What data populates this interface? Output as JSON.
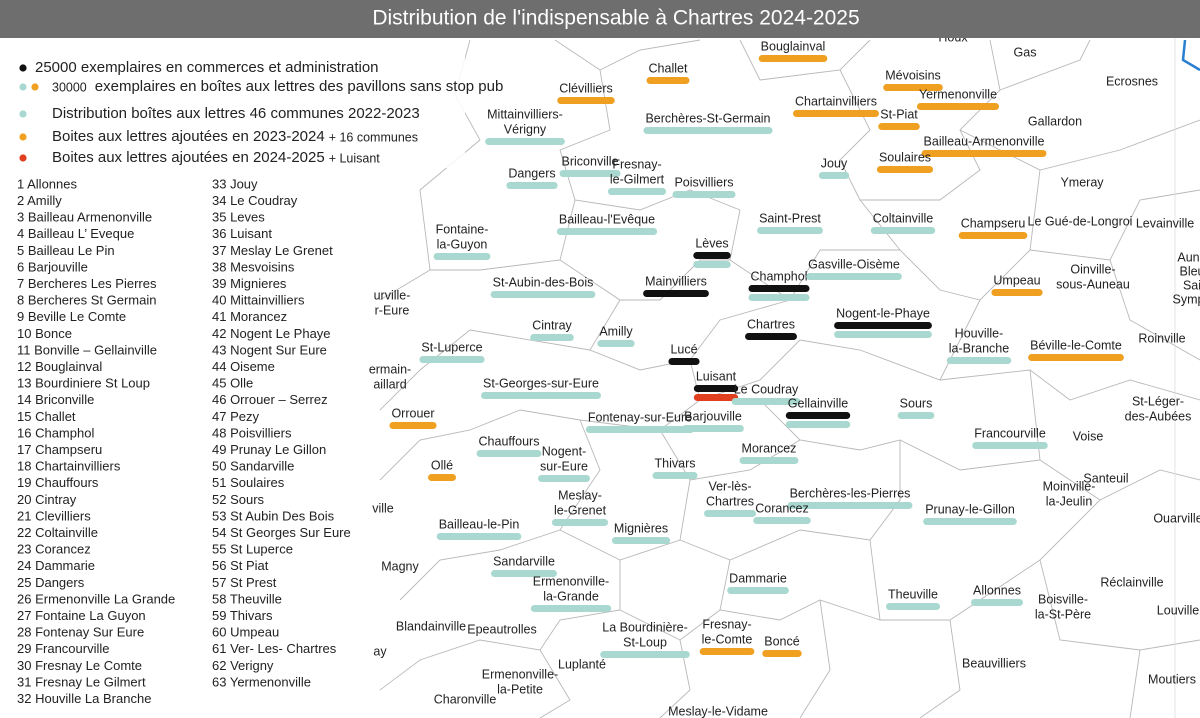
{
  "title": "Distribution de l'indispensable à Chartres 2024-2025",
  "legend": [
    {
      "dots": [
        "#111111"
      ],
      "text": "25000 exemplaires en commerces et administration"
    },
    {
      "dots": [
        "#a8d8cf",
        "#f0a020"
      ],
      "small": "30000",
      "text": "exemplaires en boîtes aux lettres des pavillons sans stop pub"
    },
    {
      "dots": [
        "#a8d8cf"
      ],
      "text": "Distribution boîtes aux lettres 46 communes 2022-2023"
    },
    {
      "dots": [
        "#f0a020"
      ],
      "text": "Boites aux lettres ajoutées en 2023-2024",
      "small": "+ 16 communes"
    },
    {
      "dots": [
        "#e04020"
      ],
      "text": "Boites aux lettres ajoutées en 2024-2025",
      "small": "+ Luisant"
    }
  ],
  "marker_colors": {
    "black": "#111111",
    "teal": "#a8d8cf",
    "orange": "#f0a020",
    "red": "#e04020"
  },
  "list": [
    "1  Allonnes",
    "2  Amilly",
    "3  Bailleau Armenonville",
    "4  Bailleau L’ Eveque",
    "5  Bailleau Le Pin",
    "6  Barjouville",
    "7  Bercheres Les Pierres",
    "8  Bercheres St Germain",
    "9  Beville Le Comte",
    "10  Bonce",
    "11  Bonville – Gellainville",
    "12  Bouglainval",
    "13  Bourdiniere St Loup",
    "14  Briconville",
    "15  Challet",
    "16  Champhol",
    "17  Champseru",
    "18  Chartainvilliers",
    "19  Chauffours",
    "20  Cintray",
    "21  Clevilliers",
    "22  Coltainville",
    "23  Corancez",
    "24  Dammarie",
    "25  Dangers",
    "26  Ermenonville La Grande",
    "27  Fontaine La Guyon",
    "28  Fontenay Sur Eure",
    "29  Francourville",
    "30  Fresnay Le Comte",
    "31  Fresnay Le Gilmert",
    "32  Houville La Branche",
    "33  Jouy",
    "34  Le Coudray",
    "35  Leves",
    "36  Luisant",
    "37  Meslay Le Grenet",
    "38  Mesvoisins",
    "39  Mignieres",
    "40  Mittainvilliers",
    "41  Morancez",
    "42  Nogent Le Phaye",
    "43  Nogent Sur Eure",
    "44  Oiseme",
    "45  Olle",
    "46  Orrouer – Serrez",
    "47  Pezy",
    "48  Poisvilliers",
    "49  Prunay Le Gillon",
    "50  Sandarville",
    "51  Soulaires",
    "52  Sours",
    "53  St Aubin Des Bois",
    "54  St Georges Sur Eure",
    "55  St Luperce",
    "56  St Piat",
    "57  St Prest",
    "58  Theuville",
    "59  Thivars",
    "60  Umpeau",
    "61  Ver- Les- Chartres",
    "62  Verigny",
    "63  Yermenonville"
  ],
  "map_labels": [
    {
      "lines": [
        "Houx"
      ],
      "marks": []
    },
    {
      "lines": [
        "Gas"
      ],
      "marks": []
    },
    {
      "lines": [
        "Ecrosnes"
      ],
      "marks": []
    },
    {
      "lines": [
        "Bouglainval"
      ],
      "marks": [
        "orange"
      ]
    },
    {
      "lines": [
        "Challet"
      ],
      "marks": [
        "orange"
      ]
    },
    {
      "lines": [
        "Mévoisins"
      ],
      "marks": [
        "orange"
      ]
    },
    {
      "lines": [
        "Clévilliers"
      ],
      "marks": [
        "orange"
      ]
    },
    {
      "lines": [
        "Yermenonville"
      ],
      "marks": [
        "orange"
      ]
    },
    {
      "lines": [
        "Chartainvilliers"
      ],
      "marks": [
        "orange"
      ]
    },
    {
      "lines": [
        "Mittainvilliers-",
        "Vérigny"
      ],
      "marks": [
        "teal"
      ]
    },
    {
      "lines": [
        "Gallardon"
      ],
      "marks": []
    },
    {
      "lines": [
        "St-Piat"
      ],
      "marks": [
        "orange"
      ]
    },
    {
      "lines": [
        "Berchères-St-Germain"
      ],
      "marks": [
        "teal"
      ]
    },
    {
      "lines": [
        "Bailleau-Armenonville"
      ],
      "marks": [
        "orange"
      ]
    },
    {
      "lines": [
        "Briconville"
      ],
      "marks": [
        "teal"
      ]
    },
    {
      "lines": [
        "Fresnay-",
        "le-Gilmert"
      ],
      "marks": [
        "teal"
      ]
    },
    {
      "lines": [
        "Jouy"
      ],
      "marks": [
        "teal"
      ]
    },
    {
      "lines": [
        "Soulaires"
      ],
      "marks": [
        "orange"
      ]
    },
    {
      "lines": [
        "Dangers"
      ],
      "marks": [
        "teal"
      ]
    },
    {
      "lines": [
        "Poisvilliers"
      ],
      "marks": [
        "teal"
      ]
    },
    {
      "lines": [
        "Ymeray"
      ],
      "marks": []
    },
    {
      "lines": [
        "Fontaine-",
        "la-Guyon"
      ],
      "marks": [
        "teal"
      ]
    },
    {
      "lines": [
        "Bailleau-l'Evêque"
      ],
      "marks": [
        "teal"
      ]
    },
    {
      "lines": [
        "Saint-Prest"
      ],
      "marks": [
        "teal"
      ]
    },
    {
      "lines": [
        "Coltainville"
      ],
      "marks": [
        "teal"
      ]
    },
    {
      "lines": [
        "Champseru"
      ],
      "marks": [
        "orange"
      ]
    },
    {
      "lines": [
        "Le Gué-de-Longroi"
      ],
      "marks": []
    },
    {
      "lines": [
        "Levainville"
      ],
      "marks": []
    },
    {
      "lines": [
        "Lèves"
      ],
      "marks": [
        "black",
        "teal"
      ]
    },
    {
      "lines": [
        "Champhol"
      ],
      "marks": [
        "black",
        "teal"
      ]
    },
    {
      "lines": [
        "Gasville-Oisème"
      ],
      "marks": [
        "teal"
      ]
    },
    {
      "lines": [
        "Aune",
        "Bleu",
        "Sai",
        "Symph"
      ],
      "marks": []
    },
    {
      "lines": [
        "Umpeau"
      ],
      "marks": [
        "orange"
      ]
    },
    {
      "lines": [
        "Oinville-",
        "sous-Auneau"
      ],
      "marks": []
    },
    {
      "lines": [
        "St-Aubin-des-Bois"
      ],
      "marks": [
        "teal"
      ]
    },
    {
      "lines": [
        "Mainvilliers"
      ],
      "marks": [
        "black"
      ]
    },
    {
      "lines": [
        "urville-",
        "r-Eure"
      ],
      "marks": []
    },
    {
      "lines": [
        "Nogent-le-Phaye"
      ],
      "marks": [
        "black",
        "teal"
      ]
    },
    {
      "lines": [
        "Cintray"
      ],
      "marks": [
        "teal"
      ]
    },
    {
      "lines": [
        "Amilly"
      ],
      "marks": [
        "teal"
      ]
    },
    {
      "lines": [
        "Chartres"
      ],
      "marks": [
        "black"
      ]
    },
    {
      "lines": [
        "Houville-",
        "la-Branche"
      ],
      "marks": [
        "teal"
      ]
    },
    {
      "lines": [
        "Béville-le-Comte"
      ],
      "marks": [
        "orange"
      ]
    },
    {
      "lines": [
        "Roinville"
      ],
      "marks": []
    },
    {
      "lines": [
        "St-Luperce"
      ],
      "marks": [
        "teal"
      ]
    },
    {
      "lines": [
        "ermain-",
        "aillard"
      ],
      "marks": []
    },
    {
      "lines": [
        "Lucé"
      ],
      "marks": [
        "black"
      ]
    },
    {
      "lines": [
        "Luisant"
      ],
      "marks": [
        "black",
        "red"
      ]
    },
    {
      "lines": [
        "Le Coudray"
      ],
      "marks": [
        "teal"
      ]
    },
    {
      "lines": [
        "St-Georges-sur-Eure"
      ],
      "marks": [
        "teal"
      ]
    },
    {
      "lines": [
        "Gellainville"
      ],
      "marks": [
        "black",
        "teal"
      ]
    },
    {
      "lines": [
        "Sours"
      ],
      "marks": [
        "teal"
      ]
    },
    {
      "lines": [
        "Orrouer"
      ],
      "marks": [
        "orange"
      ]
    },
    {
      "lines": [
        "St-Léger-",
        "des-Aubées"
      ],
      "marks": []
    },
    {
      "lines": [
        "Fontenay-sur-Eure"
      ],
      "marks": [
        "teal"
      ]
    },
    {
      "lines": [
        "Barjouville"
      ],
      "marks": [
        "teal"
      ]
    },
    {
      "lines": [
        "Francourville"
      ],
      "marks": [
        "teal"
      ]
    },
    {
      "lines": [
        "Voise"
      ],
      "marks": []
    },
    {
      "lines": [
        "Chauffours"
      ],
      "marks": [
        "teal"
      ]
    },
    {
      "lines": [
        "Nogent-",
        "sur-Eure"
      ],
      "marks": [
        "teal"
      ]
    },
    {
      "lines": [
        "Morancez"
      ],
      "marks": [
        "teal"
      ]
    },
    {
      "lines": [
        "Ollé"
      ],
      "marks": [
        "orange"
      ]
    },
    {
      "lines": [
        "Thivars"
      ],
      "marks": [
        "teal"
      ]
    },
    {
      "lines": [
        "Santeuil"
      ],
      "marks": []
    },
    {
      "lines": [
        "Moinville-",
        "la-Jeulin"
      ],
      "marks": []
    },
    {
      "lines": [
        "Ver-lès-",
        "Chartres"
      ],
      "marks": [
        "teal"
      ]
    },
    {
      "lines": [
        "Meslay-",
        "le-Grenet"
      ],
      "marks": [
        "teal"
      ]
    },
    {
      "lines": [
        "Berchères-les-Pierres"
      ],
      "marks": [
        "teal"
      ]
    },
    {
      "lines": [
        "Ouarville"
      ],
      "marks": []
    },
    {
      "lines": [
        "ville"
      ],
      "marks": []
    },
    {
      "lines": [
        "Corancez"
      ],
      "marks": [
        "teal"
      ]
    },
    {
      "lines": [
        "Prunay-le-Gillon"
      ],
      "marks": [
        "teal"
      ]
    },
    {
      "lines": [
        "Bailleau-le-Pin"
      ],
      "marks": [
        "teal"
      ]
    },
    {
      "lines": [
        "Mignières"
      ],
      "marks": [
        "teal"
      ]
    },
    {
      "lines": [
        "Magny"
      ],
      "marks": []
    },
    {
      "lines": [
        "Sandarville"
      ],
      "marks": [
        "teal"
      ]
    },
    {
      "lines": [
        "Ermenonville-",
        "la-Grande"
      ],
      "marks": [
        "teal"
      ]
    },
    {
      "lines": [
        "Dammarie"
      ],
      "marks": [
        "teal"
      ]
    },
    {
      "lines": [
        "Réclainville"
      ],
      "marks": []
    },
    {
      "lines": [
        "Theuville"
      ],
      "marks": [
        "teal"
      ]
    },
    {
      "lines": [
        "Allonnes"
      ],
      "marks": [
        "teal"
      ]
    },
    {
      "lines": [
        "Boisville-",
        "la-St-Père"
      ],
      "marks": []
    },
    {
      "lines": [
        "Louville"
      ],
      "marks": []
    },
    {
      "lines": [
        "Blandainville"
      ],
      "marks": []
    },
    {
      "lines": [
        "Epeautrolles"
      ],
      "marks": []
    },
    {
      "lines": [
        "La Bourdinière-",
        "St-Loup"
      ],
      "marks": [
        "teal"
      ]
    },
    {
      "lines": [
        "Fresnay-",
        "le-Comte"
      ],
      "marks": [
        "orange"
      ]
    },
    {
      "lines": [
        "Boncé"
      ],
      "marks": [
        "orange"
      ]
    },
    {
      "lines": [
        "Luplanté"
      ],
      "marks": []
    },
    {
      "lines": [
        "Beauvilliers"
      ],
      "marks": []
    },
    {
      "lines": [
        "ay"
      ],
      "marks": []
    },
    {
      "lines": [
        "Ermenonville-",
        "la-Petite"
      ],
      "marks": []
    },
    {
      "lines": [
        "Moutiers"
      ],
      "marks": []
    },
    {
      "lines": [
        "Charonville"
      ],
      "marks": []
    },
    {
      "lines": [
        "Meslay-le-Vidame"
      ],
      "marks": []
    }
  ]
}
